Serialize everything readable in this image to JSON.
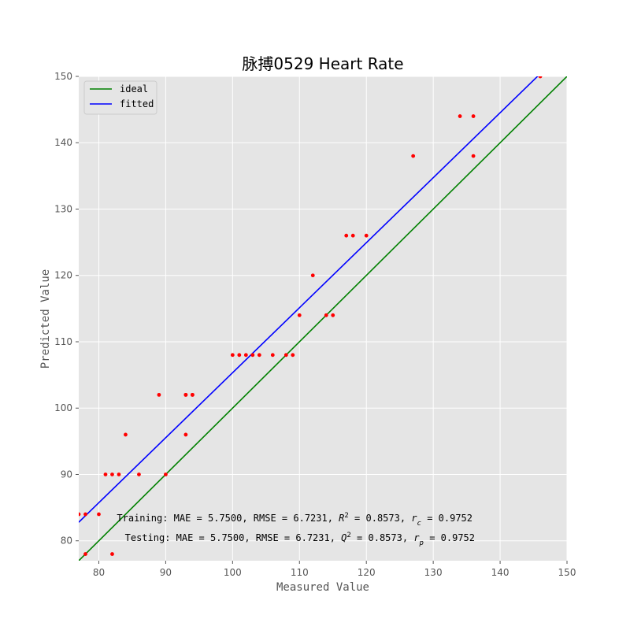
{
  "chart_data": {
    "type": "scatter",
    "title": "脉搏0529 Heart Rate",
    "xlabel": "Measured Value",
    "ylabel": "Predicted Value",
    "xlim": [
      77,
      150
    ],
    "ylim": [
      77,
      150
    ],
    "xticks": [
      80,
      90,
      100,
      110,
      120,
      130,
      140,
      150
    ],
    "yticks": [
      80,
      90,
      100,
      110,
      120,
      130,
      140,
      150
    ],
    "grid": true,
    "background": "#e5e5e5",
    "legend_position": "upper-left",
    "series": [
      {
        "name": "ideal",
        "type": "line",
        "color": "#008000",
        "x": [
          77,
          150
        ],
        "y": [
          77,
          150
        ]
      },
      {
        "name": "fitted",
        "type": "line",
        "color": "#0000ff",
        "x": [
          77,
          146
        ],
        "y": [
          82.8,
          150.4
        ]
      },
      {
        "type": "scatter",
        "color": "#ff0000",
        "x": [
          77,
          78,
          78,
          80,
          81,
          82,
          82,
          83,
          84,
          86,
          89,
          90,
          93,
          93,
          93,
          94,
          94,
          100,
          101,
          102,
          103,
          104,
          106,
          108,
          109,
          110,
          112,
          114,
          115,
          117,
          118,
          120,
          127,
          134,
          136,
          136,
          146
        ],
        "y": [
          84,
          84,
          78,
          84,
          90,
          90,
          78,
          90,
          96,
          90,
          102,
          90,
          102,
          102,
          96,
          102,
          102,
          108,
          108,
          108,
          108,
          108,
          108,
          108,
          108,
          114,
          120,
          114,
          114,
          126,
          126,
          126,
          138,
          144,
          144,
          138,
          150
        ]
      }
    ],
    "annotations": {
      "training": {
        "prefix": "Training: MAE = 5.7500, RMSE = 6.7231, ",
        "metric": "R",
        "metric_sup": "2",
        "mid": " = 0.8573, ",
        "r": "r",
        "r_sub": "c",
        "suffix": " = 0.9752"
      },
      "testing": {
        "prefix": "Testing: MAE = 5.7500, RMSE = 6.7231, ",
        "metric": "Q",
        "metric_sup": "2",
        "mid": " = 0.8573, ",
        "r": "r",
        "r_sub": "p",
        "suffix": " = 0.9752"
      }
    }
  }
}
